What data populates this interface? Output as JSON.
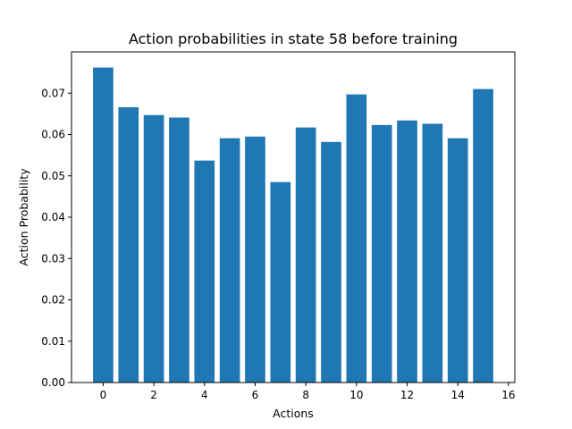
{
  "chart_data": {
    "type": "bar",
    "title": "Action probabilities in state 58 before training",
    "xlabel": "Actions",
    "ylabel": "Action Probability",
    "categories": [
      0,
      1,
      2,
      3,
      4,
      5,
      6,
      7,
      8,
      9,
      10,
      11,
      12,
      13,
      14,
      15
    ],
    "values": [
      0.0762,
      0.0666,
      0.0647,
      0.0641,
      0.0537,
      0.0591,
      0.0595,
      0.0485,
      0.0617,
      0.0582,
      0.0697,
      0.0623,
      0.0634,
      0.0626,
      0.0591,
      0.071
    ],
    "xlim": [
      -1.25,
      16.25
    ],
    "ylim": [
      0,
      0.08
    ],
    "xticks": [
      0,
      2,
      4,
      6,
      8,
      10,
      12,
      14,
      16
    ],
    "yticks": [
      0.0,
      0.01,
      0.02,
      0.03,
      0.04,
      0.05,
      0.06,
      0.07
    ],
    "xtick_labels": [
      "0",
      "2",
      "4",
      "6",
      "8",
      "10",
      "12",
      "14",
      "16"
    ],
    "ytick_labels": [
      "0.00",
      "0.01",
      "0.02",
      "0.03",
      "0.04",
      "0.05",
      "0.06",
      "0.07"
    ],
    "bar_color": "#1f77b4",
    "grid": false,
    "legend": "none"
  }
}
